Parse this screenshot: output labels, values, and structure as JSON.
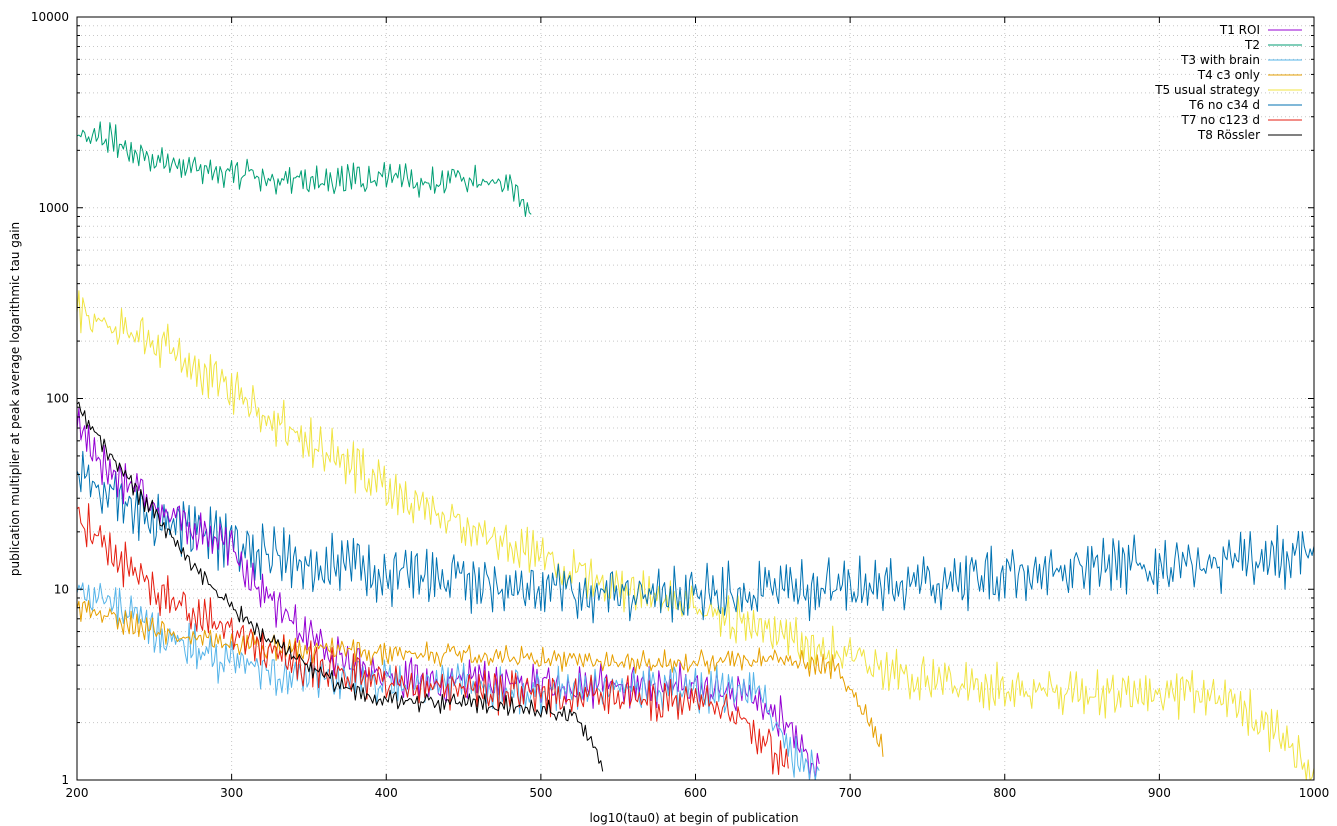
{
  "chart_data": {
    "type": "line",
    "title": "",
    "xlabel": "log10(tau0) at begin of publication",
    "ylabel": "publication multiplier at peak average logarithmic tau gain",
    "xlim": [
      200,
      1000
    ],
    "ylim": [
      1,
      10000
    ],
    "yscale": "log",
    "grid": true,
    "legend_position": "top-right",
    "x_ticks": [
      "200",
      "300",
      "400",
      "500",
      "600",
      "700",
      "800",
      "900",
      "1000"
    ],
    "y_ticks": [
      "1",
      "10",
      "100",
      "1000",
      "10000"
    ],
    "series": [
      {
        "name": "T1 ROI",
        "color": "#9400d3",
        "x": [
          200,
          220,
          240,
          260,
          280,
          300,
          320,
          340,
          360,
          380,
          400,
          440,
          480,
          520,
          560,
          600,
          640,
          660,
          680
        ],
        "y": [
          75,
          42,
          34,
          25,
          20,
          16,
          10,
          6.5,
          5,
          4,
          3.6,
          3.2,
          3.2,
          3.1,
          3.1,
          3.1,
          2.6,
          1.9,
          1.1
        ],
        "noise": 0.11
      },
      {
        "name": "T2",
        "color": "#009e73",
        "x": [
          200,
          220,
          250,
          300,
          350,
          400,
          450,
          480,
          494
        ],
        "y": [
          2500,
          2300,
          1800,
          1500,
          1400,
          1400,
          1400,
          1400,
          850
        ],
        "noise": 0.08
      },
      {
        "name": "T3 with brain",
        "color": "#56b4e9",
        "x": [
          200,
          230,
          260,
          300,
          350,
          400,
          450,
          500,
          550,
          600,
          640,
          660,
          680
        ],
        "y": [
          10,
          8,
          5.5,
          4.2,
          3.5,
          3.2,
          3.1,
          3.0,
          3.0,
          3.0,
          2.8,
          1.5,
          1.05
        ],
        "noise": 0.12
      },
      {
        "name": "T4 c3 only",
        "color": "#e69f00",
        "x": [
          200,
          230,
          260,
          300,
          350,
          400,
          450,
          500,
          550,
          600,
          650,
          690,
          700,
          710,
          722
        ],
        "y": [
          8,
          6.8,
          5.8,
          5.2,
          4.8,
          4.6,
          4.5,
          4.3,
          4.2,
          4.2,
          4.2,
          4.0,
          3.0,
          2.2,
          1.5
        ],
        "noise": 0.06
      },
      {
        "name": "T5 usual strategy",
        "color": "#f0e442",
        "x": [
          200,
          220,
          250,
          300,
          350,
          400,
          450,
          500,
          550,
          600,
          650,
          700,
          750,
          800,
          850,
          900,
          950,
          980,
          1000
        ],
        "y": [
          280,
          250,
          200,
          110,
          60,
          35,
          22,
          15,
          10,
          8,
          6,
          4.5,
          3.3,
          3.0,
          2.9,
          2.8,
          2.6,
          1.6,
          1.05
        ],
        "noise": 0.12
      },
      {
        "name": "T6 no c34 d",
        "color": "#0072b2",
        "x": [
          200,
          230,
          260,
          300,
          350,
          400,
          450,
          500,
          550,
          600,
          650,
          700,
          750,
          800,
          850,
          900,
          950,
          1000
        ],
        "y": [
          40,
          28,
          22,
          17,
          14,
          12,
          11,
          10,
          9.5,
          9.5,
          10,
          10.5,
          11,
          12,
          13,
          13.5,
          14,
          15
        ],
        "noise": 0.15
      },
      {
        "name": "T7 no c123 d",
        "color": "#e51e10",
        "x": [
          200,
          220,
          250,
          280,
          300,
          350,
          400,
          450,
          500,
          550,
          600,
          620,
          640,
          660
        ],
        "y": [
          25,
          16,
          10,
          7,
          6,
          4,
          3.2,
          3.0,
          2.8,
          2.7,
          2.6,
          2.4,
          1.8,
          1.1
        ],
        "noise": 0.11
      },
      {
        "name": "T8 Rössler",
        "color": "#000000",
        "x": [
          200,
          210,
          230,
          250,
          270,
          300,
          330,
          360,
          380,
          400,
          450,
          500,
          520,
          530,
          540
        ],
        "y": [
          90,
          70,
          40,
          25,
          15,
          8,
          5,
          3.5,
          2.8,
          2.6,
          2.5,
          2.4,
          2.2,
          1.8,
          1.15
        ],
        "noise": 0.05
      }
    ]
  }
}
